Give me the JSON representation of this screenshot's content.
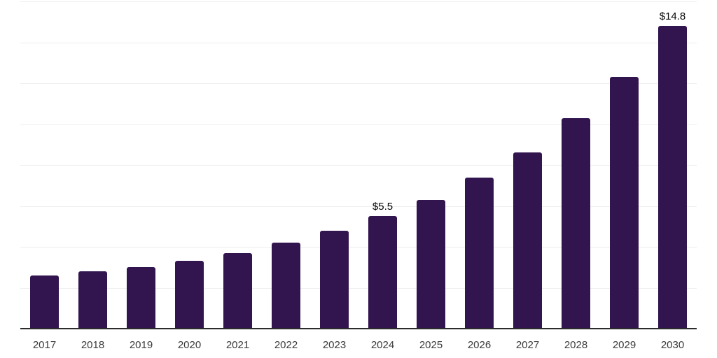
{
  "chart_data": {
    "type": "bar",
    "title": "",
    "xlabel": "",
    "ylabel": "",
    "categories": [
      "2017",
      "2018",
      "2019",
      "2020",
      "2021",
      "2022",
      "2023",
      "2024",
      "2025",
      "2026",
      "2027",
      "2028",
      "2029",
      "2030"
    ],
    "values": [
      2.6,
      2.8,
      3.0,
      3.3,
      3.7,
      4.2,
      4.8,
      5.5,
      6.3,
      7.4,
      8.6,
      10.3,
      12.3,
      14.8
    ],
    "value_labels": {
      "2024": "$5.5",
      "2030": "$14.8"
    },
    "ylim": [
      0,
      16
    ],
    "grid_step": 2,
    "grid": true,
    "legend": false,
    "y_axis_tick_labels_visible": false,
    "colors": {
      "bar": "#32154f",
      "gridline": "#efefef",
      "axis": "#2b2b2b",
      "tick_label": "#3a3a3a",
      "value_label": "#050505",
      "background": "#ffffff"
    }
  }
}
